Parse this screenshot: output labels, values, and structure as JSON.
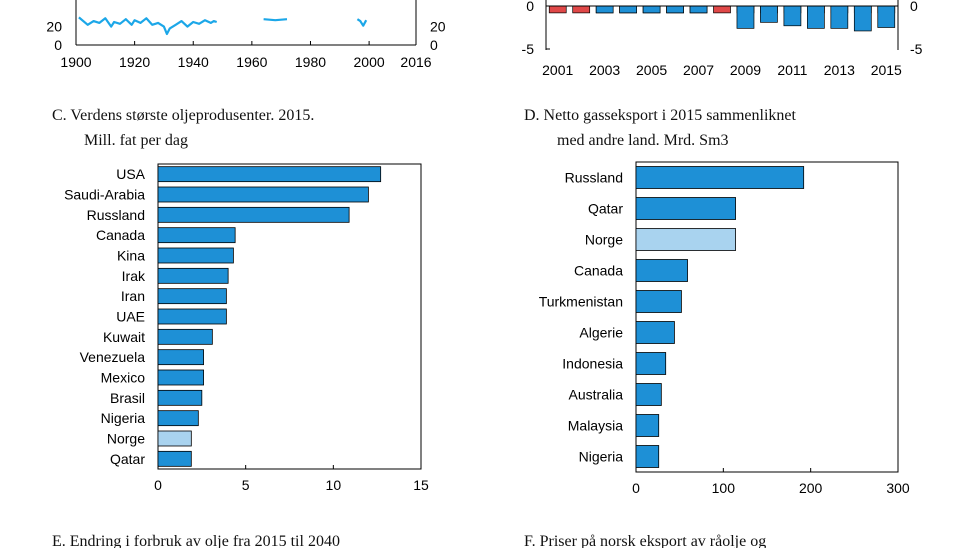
{
  "colors": {
    "blue": "#1e90d6",
    "light_blue": "#a9d3ef",
    "red": "#e04848",
    "line": "#1ca7e8"
  },
  "chart_data": [
    {
      "id": "B",
      "type": "line",
      "title": "",
      "xlabel": "",
      "ylabel": "",
      "xlim": [
        1900,
        2016
      ],
      "ylim": [
        0,
        100
      ],
      "x_ticks": [
        "1900",
        "1920",
        "1940",
        "1960",
        "1980",
        "2000",
        "2016"
      ],
      "y_ticks_left": [
        "0",
        "20"
      ],
      "y_ticks_right": [
        "0",
        "20"
      ],
      "series": [
        {
          "x": [
            1901,
            1904,
            1906,
            1908,
            1910,
            1912,
            1913,
            1915,
            1917,
            1919,
            1920,
            1922,
            1924,
            1926,
            1928,
            1930,
            1931,
            1932,
            1934,
            1936,
            1938,
            1940,
            1942,
            1944,
            1946,
            1947,
            1948
          ],
          "values": [
            30,
            22,
            26,
            24,
            29,
            20,
            25,
            23,
            28,
            22,
            27,
            24,
            29,
            22,
            24,
            20,
            12,
            18,
            22,
            26,
            20,
            25,
            23,
            27,
            24,
            26,
            25
          ]
        },
        {
          "x": [
            1964,
            1968,
            1972
          ],
          "values": [
            28,
            27,
            28
          ]
        },
        {
          "x": [
            1996,
            1997,
            1998,
            1999
          ],
          "values": [
            28,
            26,
            21,
            27
          ]
        }
      ]
    },
    {
      "id": "A",
      "type": "bar",
      "title": "",
      "xlabel": "",
      "ylabel": "",
      "ylim": [
        -5,
        5
      ],
      "categories": [
        "2001",
        "2002",
        "2003",
        "2004",
        "2005",
        "2006",
        "2007",
        "2008",
        "2009",
        "2010",
        "2011",
        "2012",
        "2013",
        "2014",
        "2015"
      ],
      "x_tick_labels": [
        "2001",
        "2003",
        "2005",
        "2007",
        "2009",
        "2011",
        "2013",
        "2015"
      ],
      "y_ticks_left": [
        "-5",
        "0"
      ],
      "y_ticks_right": [
        "-5",
        "0"
      ],
      "series": [
        {
          "values": [
            -0.8,
            -0.8,
            -0.8,
            -0.8,
            -0.8,
            -0.8,
            -0.8,
            -0.8,
            -0.8,
            -0.8,
            -0.8,
            -0.8,
            -0.8,
            -0.8,
            -0.8
          ]
        },
        {
          "values": [
            0,
            0,
            -0.8,
            -0.8,
            -0.8,
            -0.8,
            -0.8,
            0,
            -2.6,
            -1.9,
            -2.3,
            -2.6,
            -2.6,
            -2.9,
            -2.5
          ]
        }
      ]
    },
    {
      "id": "C",
      "type": "bar",
      "title": "C.  Verdens største oljeprodusenter. 2015.",
      "subtitle": "Mill. fat per dag",
      "orientation": "horizontal",
      "categories": [
        "USA",
        "Saudi-Arabia",
        "Russland",
        "Canada",
        "Kina",
        "Irak",
        "Iran",
        "UAE",
        "Kuwait",
        "Venezuela",
        "Mexico",
        "Brasil",
        "Nigeria",
        "Norge",
        "Qatar"
      ],
      "values": [
        12.7,
        12.0,
        10.9,
        4.4,
        4.3,
        4.0,
        3.9,
        3.9,
        3.1,
        2.6,
        2.6,
        2.5,
        2.3,
        1.9,
        1.9
      ],
      "highlight": "Norge",
      "xlim": [
        0,
        15
      ],
      "x_ticks": [
        "0",
        "5",
        "10",
        "15"
      ]
    },
    {
      "id": "D",
      "type": "bar",
      "title": "D.  Netto gasseksport i 2015 sammenliknet",
      "subtitle": "med andre land. Mrd. Sm3",
      "orientation": "horizontal",
      "categories": [
        "Russland",
        "Qatar",
        "Norge",
        "Canada",
        "Turkmenistan",
        "Algerie",
        "Indonesia",
        "Australia",
        "Malaysia",
        "Nigeria"
      ],
      "values": [
        192,
        114,
        114,
        59,
        52,
        44,
        34,
        29,
        26,
        26
      ],
      "highlight": "Norge",
      "xlim": [
        0,
        300
      ],
      "x_ticks": [
        "0",
        "100",
        "200",
        "300"
      ]
    }
  ],
  "footer": {
    "caption_e": "E.  Endring i forbruk av olje fra 2015 til 2040",
    "caption_f": "F.  Priser på norsk eksport av råolje og"
  }
}
